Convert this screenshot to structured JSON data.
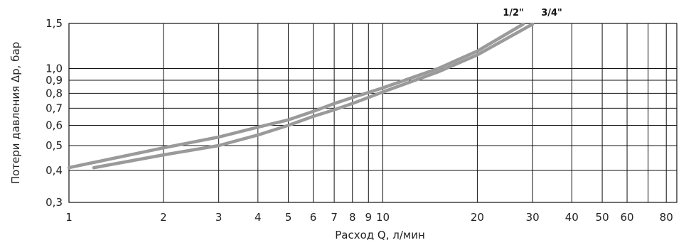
{
  "chart_data": {
    "type": "line",
    "xlabel": "Расход Q, л/мин",
    "ylabel": "Потери давления Δp, бар",
    "x_scale": "log",
    "y_scale": "log",
    "xlim": [
      1,
      100
    ],
    "ylim": [
      0.3,
      1.5
    ],
    "grid": true,
    "x_grid_values": [
      2,
      3,
      4,
      5,
      6,
      7,
      8,
      9,
      10,
      20,
      30,
      40,
      50,
      60,
      70,
      80,
      90
    ],
    "y_grid_values": [
      0.4,
      0.5,
      0.6,
      0.7,
      0.8,
      0.9,
      1.0
    ],
    "x_ticks": [
      {
        "value": 1,
        "label": "1"
      },
      {
        "value": 2,
        "label": "2"
      },
      {
        "value": 3,
        "label": "3"
      },
      {
        "value": 4,
        "label": "4"
      },
      {
        "value": 5,
        "label": "5"
      },
      {
        "value": 6,
        "label": "6"
      },
      {
        "value": 7,
        "label": "7"
      },
      {
        "value": 8,
        "label": "8"
      },
      {
        "value": 9,
        "label": "9"
      },
      {
        "value": 10,
        "label": "10"
      },
      {
        "value": 20,
        "label": "20"
      },
      {
        "value": 30,
        "label": "30"
      },
      {
        "value": 40,
        "label": "40"
      },
      {
        "value": 50,
        "label": "50"
      },
      {
        "value": 60,
        "label": "60"
      },
      {
        "value": 80,
        "label": "80"
      }
    ],
    "y_ticks": [
      {
        "value": 0.3,
        "label": "0,3"
      },
      {
        "value": 0.4,
        "label": "0,4"
      },
      {
        "value": 0.5,
        "label": "0,5"
      },
      {
        "value": 0.6,
        "label": "0,6"
      },
      {
        "value": 0.7,
        "label": "0,7"
      },
      {
        "value": 0.8,
        "label": "0,8"
      },
      {
        "value": 0.9,
        "label": "0,9"
      },
      {
        "value": 1.0,
        "label": "1,0"
      },
      {
        "value": 1.5,
        "label": "1,5"
      }
    ],
    "series": [
      {
        "name": "1/2\"",
        "color": "#9a9a9a",
        "points": [
          [
            1,
            0.41
          ],
          [
            2,
            0.49
          ],
          [
            3,
            0.54
          ],
          [
            4,
            0.59
          ],
          [
            5,
            0.63
          ],
          [
            6,
            0.68
          ],
          [
            7,
            0.73
          ],
          [
            8,
            0.77
          ],
          [
            10,
            0.84
          ],
          [
            15,
            1.0
          ],
          [
            20,
            1.17
          ],
          [
            28,
            1.49
          ]
        ]
      },
      {
        "name": "3/4\"",
        "color": "#9a9a9a",
        "points": [
          [
            1.2,
            0.41
          ],
          [
            2,
            0.46
          ],
          [
            3,
            0.5
          ],
          [
            4,
            0.55
          ],
          [
            5,
            0.6
          ],
          [
            6,
            0.65
          ],
          [
            7,
            0.69
          ],
          [
            8,
            0.73
          ],
          [
            10,
            0.81
          ],
          [
            15,
            0.97
          ],
          [
            20,
            1.13
          ],
          [
            30,
            1.49
          ]
        ]
      }
    ]
  }
}
